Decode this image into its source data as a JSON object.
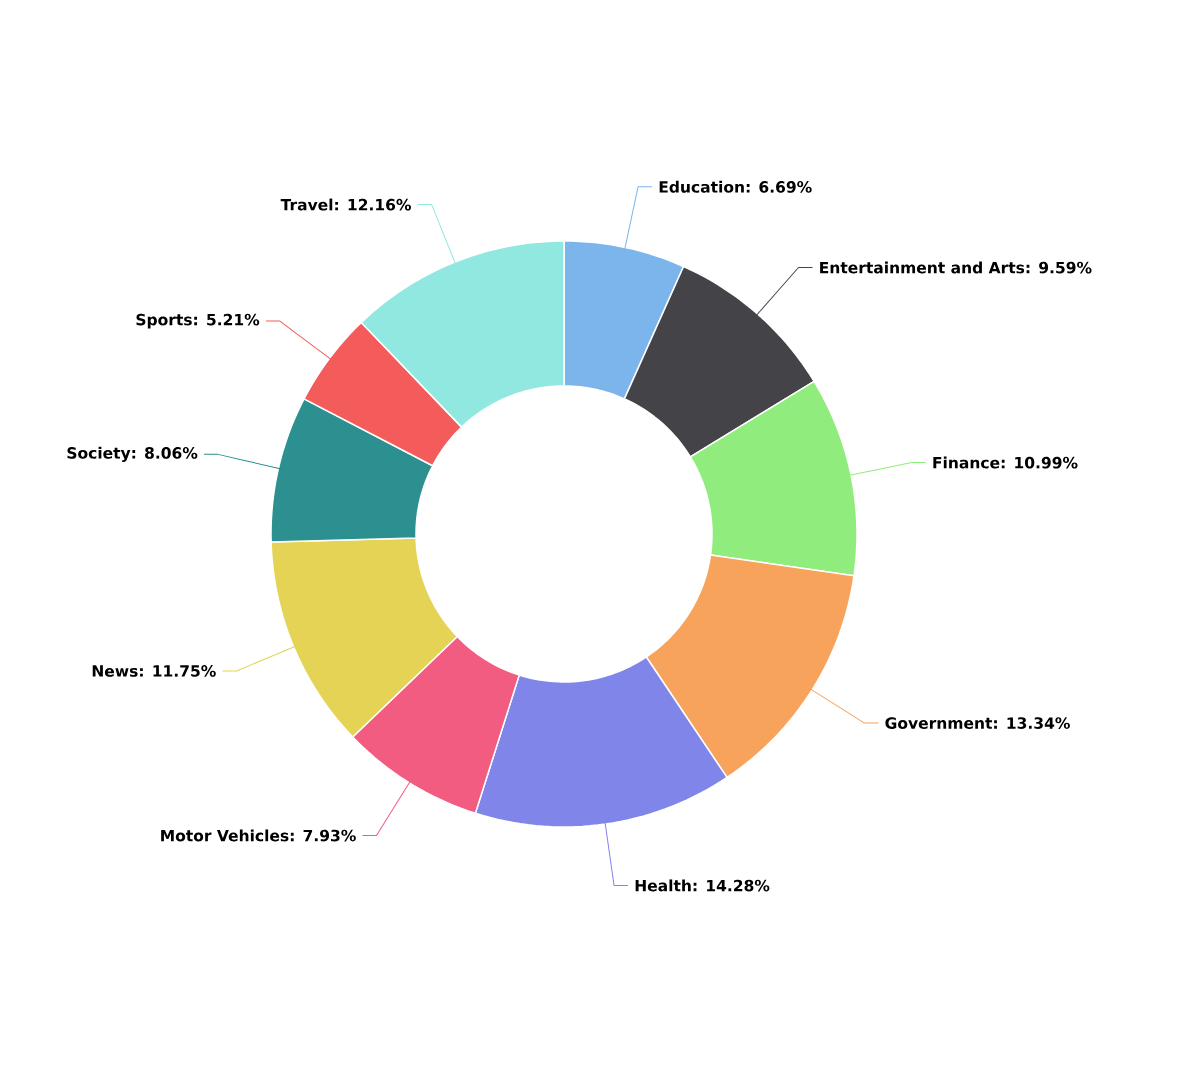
{
  "chart_data": {
    "type": "donut",
    "categories": [
      "Education",
      "Entertainment and Arts",
      "Finance",
      "Government",
      "Health",
      "Motor Vehicles",
      "News",
      "Society",
      "Sports",
      "Travel"
    ],
    "values": [
      6.69,
      9.59,
      10.99,
      13.34,
      14.28,
      7.93,
      11.75,
      8.06,
      5.21,
      12.16
    ],
    "value_labels": [
      ": 6.69%",
      ": 9.59%",
      ": 10.99%",
      ": 13.34%",
      ": 14.28%",
      ": 7.93%",
      ": 11.75%",
      ": 8.06%",
      ": 5.21%",
      ": 12.16%"
    ],
    "colors": [
      "#7cb5ec",
      "#434348",
      "#90ed7d",
      "#f7a35c",
      "#8085e9",
      "#f15c80",
      "#e4d354",
      "#2b908f",
      "#f45b5b",
      "#91e8e1"
    ]
  }
}
